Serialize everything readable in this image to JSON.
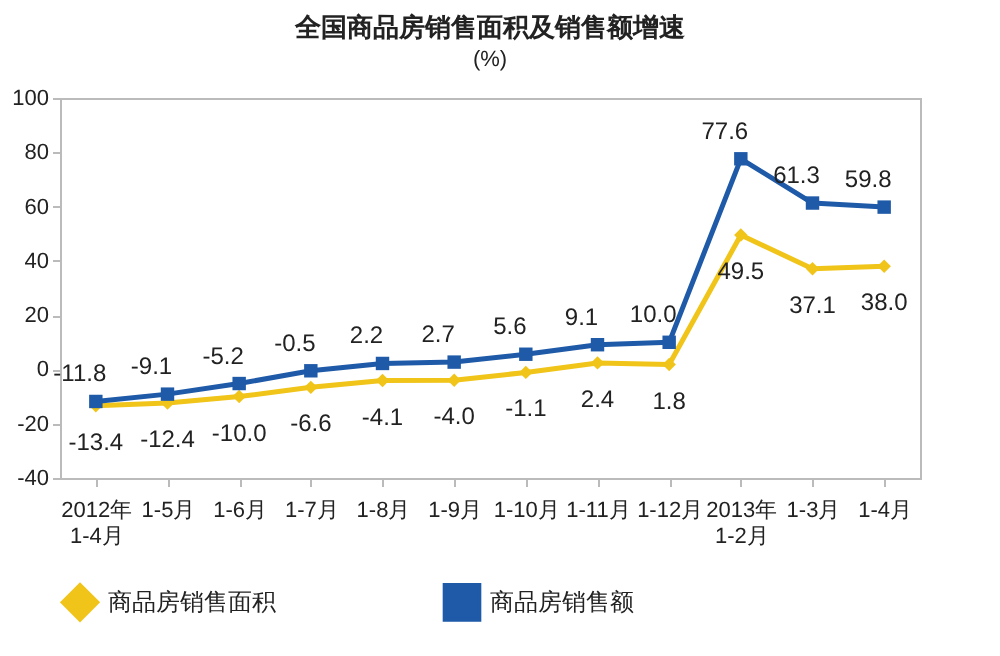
{
  "chart_data": {
    "type": "line",
    "title": "全国商品房销售面积及销售额增速",
    "ylabel": "(%)",
    "categories": [
      "2012年\n1-4月",
      "1-5月",
      "1-6月",
      "1-7月",
      "1-8月",
      "1-9月",
      "1-10月",
      "1-11月",
      "1-12月",
      "2013年\n1-2月",
      "1-3月",
      "1-4月"
    ],
    "series": [
      {
        "name": "商品房销售面积",
        "color": "#f0c419",
        "marker": "diamond",
        "values": [
          -13.4,
          -12.4,
          -10.0,
          -6.6,
          -4.1,
          -4.0,
          -1.1,
          2.4,
          1.8,
          49.5,
          37.1,
          38.0
        ],
        "value_labels": [
          "-13.4",
          "-12.4",
          "-10.0",
          "-6.6",
          "-4.1",
          "-4.0",
          "-1.1",
          "2.4",
          "1.8",
          "49.5",
          "37.1",
          "38.0"
        ]
      },
      {
        "name": "商品房销售额",
        "color": "#1e5aa8",
        "marker": "square",
        "values": [
          -11.8,
          -9.1,
          -5.2,
          -0.5,
          2.2,
          2.7,
          5.6,
          9.1,
          10.0,
          77.6,
          61.3,
          59.8
        ],
        "value_labels": [
          "-11.8",
          "-9.1",
          "-5.2",
          "-0.5",
          "2.2",
          "2.7",
          "5.6",
          "9.1",
          "10.0",
          "77.6",
          "61.3",
          "59.8"
        ]
      }
    ],
    "ylim": [
      -40,
      100
    ],
    "yticks": [
      -40,
      -20,
      0,
      20,
      40,
      60,
      80,
      100
    ],
    "legend": "bottom",
    "line_style": "solid"
  }
}
